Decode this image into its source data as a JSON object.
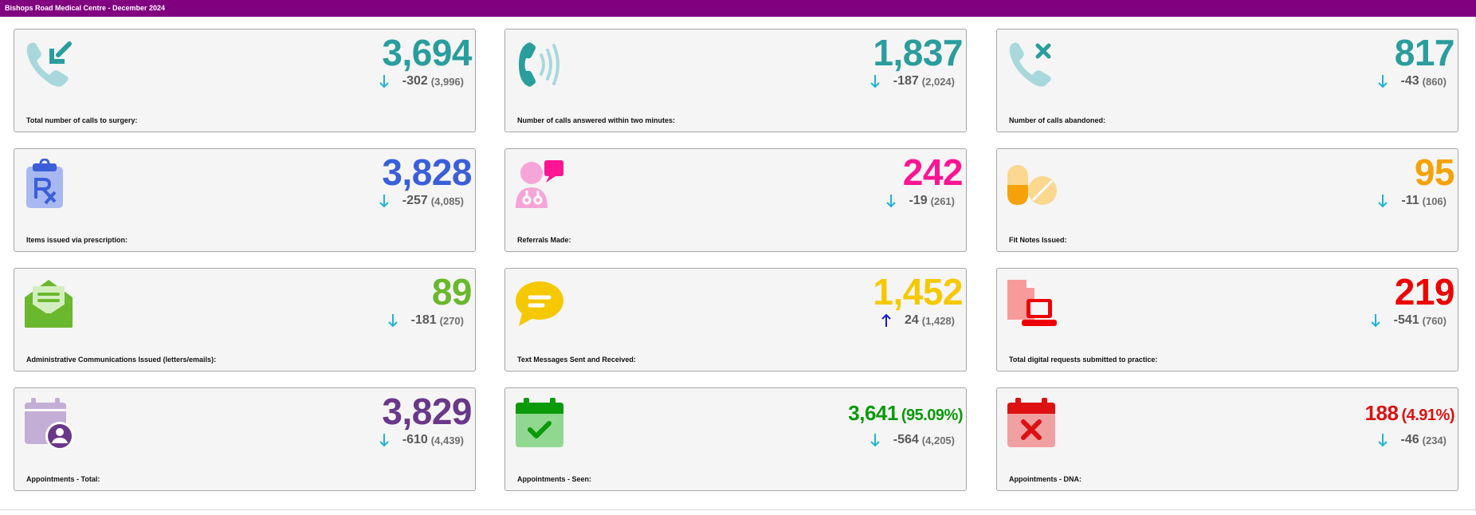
{
  "header": {
    "title": "Bishops Road Medical Centre - December 2024"
  },
  "cards": [
    {
      "label": "Total number of calls to surgery:",
      "value": "3,694",
      "change": "-302",
      "previous": "(3,996)",
      "trend": "down",
      "color": "#2a9d9d",
      "icon": "phone-incoming-icon"
    },
    {
      "label": "Number of calls answered within two minutes:",
      "value": "1,837",
      "change": "-187",
      "previous": "(2,024)",
      "trend": "down",
      "color": "#2a9d9d",
      "icon": "phone-ringing-icon"
    },
    {
      "label": "Number of calls abandoned:",
      "value": "817",
      "change": "-43",
      "previous": "(860)",
      "trend": "down",
      "color": "#2a9d9d",
      "icon": "phone-missed-icon"
    },
    {
      "label": "Items issued via prescription:",
      "value": "3,828",
      "change": "-257",
      "previous": "(4,085)",
      "trend": "down",
      "color": "#3b5fd9",
      "icon": "prescription-clipboard-icon"
    },
    {
      "label": "Referrals Made:",
      "value": "242",
      "change": "-19",
      "previous": "(261)",
      "trend": "down",
      "color": "#ff1493",
      "icon": "doctor-chat-icon"
    },
    {
      "label": "Fit Notes Issued:",
      "value": "95",
      "change": "-11",
      "previous": "(106)",
      "trend": "down",
      "color": "#f5a20a",
      "icon": "pills-icon"
    },
    {
      "label": "Administrative Communications Issued (letters/emails):",
      "value": "89",
      "change": "-181",
      "previous": "(270)",
      "trend": "down",
      "color": "#6ab82e",
      "icon": "open-envelope-icon"
    },
    {
      "label": "Text Messages Sent and Received:",
      "value": "1,452",
      "change": "24",
      "previous": "(1,428)",
      "trend": "up",
      "color": "#f5c800",
      "icon": "chat-bubble-icon"
    },
    {
      "label": "Total digital requests submitted to practice:",
      "value": "219",
      "change": "-541",
      "previous": "(760)",
      "trend": "down",
      "color": "#ee0000",
      "icon": "laptop-document-icon"
    },
    {
      "label": "Appointments - Total:",
      "value": "3,829",
      "change": "-610",
      "previous": "(4,439)",
      "trend": "down",
      "color": "#6a3889",
      "icon": "calendar-person-icon"
    },
    {
      "label": "Appointments - Seen:",
      "value": "3,641",
      "pct": "(95.09%)",
      "change": "-564",
      "previous": "(4,205)",
      "trend": "down",
      "color": "#0a9a0a",
      "icon": "calendar-check-icon"
    },
    {
      "label": "Appointments - DNA:",
      "value": "188",
      "pct": "(4.91%)",
      "change": "-46",
      "previous": "(234)",
      "trend": "down",
      "color": "#dd1111",
      "icon": "calendar-cross-icon"
    }
  ],
  "trend_colors": {
    "down": "#1eb4d6",
    "up": "#1a1ad6"
  }
}
